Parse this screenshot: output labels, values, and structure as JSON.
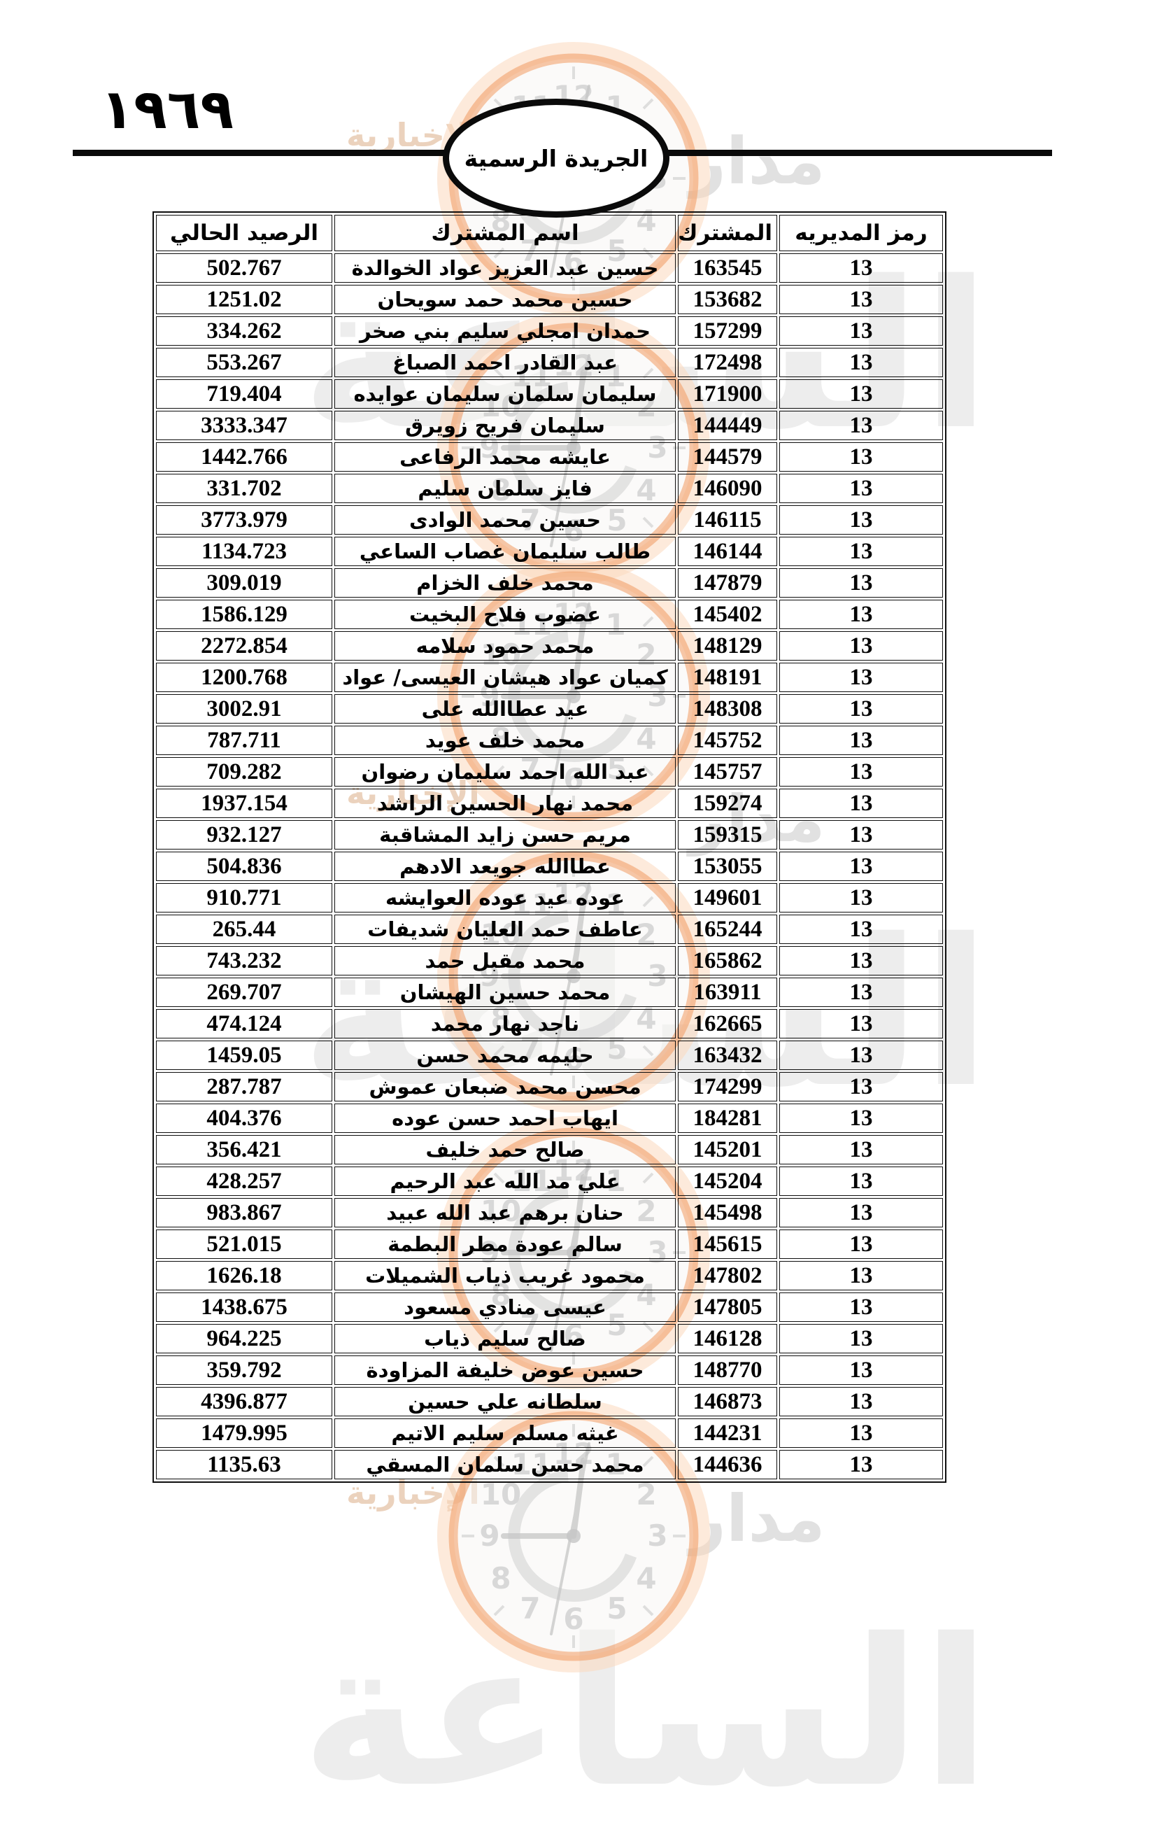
{
  "page": {
    "year_label": "١٩٦٩",
    "banner_label": "الجريدة الرسمية"
  },
  "watermark": {
    "brand_word_1": "مدار",
    "brand_word_2": "الساعة",
    "brand_word_3": "الإخبارية"
  },
  "colors": {
    "ink": "#000000",
    "watermark_orange": "#f2a470",
    "watermark_orange_glow": "#fbd9bd",
    "watermark_gray": "#d6d6d6"
  },
  "table": {
    "headers": [
      "رمز المديريه",
      "المشترك",
      "اسم المشترك",
      "الرصيد الحالي"
    ],
    "rows": [
      {
        "code": "13",
        "subscriber": "163545",
        "name": "حسين عبد العزيز عواد الخوالدة",
        "balance": "502.767"
      },
      {
        "code": "13",
        "subscriber": "153682",
        "name": "حسين محمد حمد سويحان",
        "balance": "1251.02"
      },
      {
        "code": "13",
        "subscriber": "157299",
        "name": "حمدان امجلي سليم بني صخر",
        "balance": "334.262"
      },
      {
        "code": "13",
        "subscriber": "172498",
        "name": "عبد القادر احمد الصباغ",
        "balance": "553.267"
      },
      {
        "code": "13",
        "subscriber": "171900",
        "name": "سليمان سلمان سليمان عوايده",
        "balance": "719.404"
      },
      {
        "code": "13",
        "subscriber": "144449",
        "name": "سليمان فريح زويرق",
        "balance": "3333.347"
      },
      {
        "code": "13",
        "subscriber": "144579",
        "name": "عايشه محمد الرفاعى",
        "balance": "1442.766"
      },
      {
        "code": "13",
        "subscriber": "146090",
        "name": "فايز سلمان سليم",
        "balance": "331.702"
      },
      {
        "code": "13",
        "subscriber": "146115",
        "name": "حسين محمد الوادى",
        "balance": "3773.979"
      },
      {
        "code": "13",
        "subscriber": "146144",
        "name": "طالب سليمان غصاب الساعي",
        "balance": "1134.723"
      },
      {
        "code": "13",
        "subscriber": "147879",
        "name": "محمد خلف  الخزام",
        "balance": "309.019"
      },
      {
        "code": "13",
        "subscriber": "145402",
        "name": "عضوب فلاح البخيت",
        "balance": "1586.129"
      },
      {
        "code": "13",
        "subscriber": "148129",
        "name": "محمد حمود سلامه",
        "balance": "2272.854"
      },
      {
        "code": "13",
        "subscriber": "148191",
        "name": "كميان عواد هيشان العيسى/ عواد",
        "balance": "1200.768"
      },
      {
        "code": "13",
        "subscriber": "148308",
        "name": "عيد عطاالله على",
        "balance": "3002.91"
      },
      {
        "code": "13",
        "subscriber": "145752",
        "name": "محمد خلف  عويد",
        "balance": "787.711"
      },
      {
        "code": "13",
        "subscriber": "145757",
        "name": "عبد الله احمد سليمان رضوان",
        "balance": "709.282"
      },
      {
        "code": "13",
        "subscriber": "159274",
        "name": "محمد نهار الحسين الراشد",
        "balance": "1937.154"
      },
      {
        "code": "13",
        "subscriber": "159315",
        "name": "مريم حسن زايد المشاقبة",
        "balance": "932.127"
      },
      {
        "code": "13",
        "subscriber": "153055",
        "name": "عطاالله جويعد الادهم",
        "balance": "504.836"
      },
      {
        "code": "13",
        "subscriber": "149601",
        "name": "عوده عيد عوده العوايشه",
        "balance": "910.771"
      },
      {
        "code": "13",
        "subscriber": "165244",
        "name": "عاطف حمد العليان شديفات",
        "balance": "265.44"
      },
      {
        "code": "13",
        "subscriber": "165862",
        "name": "محمد مقبل حمد",
        "balance": "743.232"
      },
      {
        "code": "13",
        "subscriber": "163911",
        "name": "محمد حسين الهيشان",
        "balance": "269.707"
      },
      {
        "code": "13",
        "subscriber": "162665",
        "name": "ناجد نهار محمد",
        "balance": "474.124"
      },
      {
        "code": "13",
        "subscriber": "163432",
        "name": "حليمه محمد حسن",
        "balance": "1459.05"
      },
      {
        "code": "13",
        "subscriber": "174299",
        "name": "محسن محمد ضبعان عموش",
        "balance": "287.787"
      },
      {
        "code": "13",
        "subscriber": "184281",
        "name": "ايهاب احمد حسن عوده",
        "balance": "404.376"
      },
      {
        "code": "13",
        "subscriber": "145201",
        "name": "صالح حمد خليف",
        "balance": "356.421"
      },
      {
        "code": "13",
        "subscriber": "145204",
        "name": "علي مد الله عبد الرحيم",
        "balance": "428.257"
      },
      {
        "code": "13",
        "subscriber": "145498",
        "name": "حنان برهم عبد الله عبيد",
        "balance": "983.867"
      },
      {
        "code": "13",
        "subscriber": "145615",
        "name": "سالم عودة مطر البطمة",
        "balance": "521.015"
      },
      {
        "code": "13",
        "subscriber": "147802",
        "name": "محمود غريب ذياب الشميلات",
        "balance": "1626.18"
      },
      {
        "code": "13",
        "subscriber": "147805",
        "name": "عيسى منادي مسعود",
        "balance": "1438.675"
      },
      {
        "code": "13",
        "subscriber": "146128",
        "name": "صالح سليم ذياب",
        "balance": "964.225"
      },
      {
        "code": "13",
        "subscriber": "148770",
        "name": "حسين عوض خليفة المزاودة",
        "balance": "359.792"
      },
      {
        "code": "13",
        "subscriber": "146873",
        "name": "سلطانه  علي حسين",
        "balance": "4396.877"
      },
      {
        "code": "13",
        "subscriber": "144231",
        "name": "غيثه مسلم سليم الاتيم",
        "balance": "1479.995"
      },
      {
        "code": "13",
        "subscriber": "144636",
        "name": "محمد حسن سلمان المسقي",
        "balance": "1135.63"
      }
    ]
  }
}
